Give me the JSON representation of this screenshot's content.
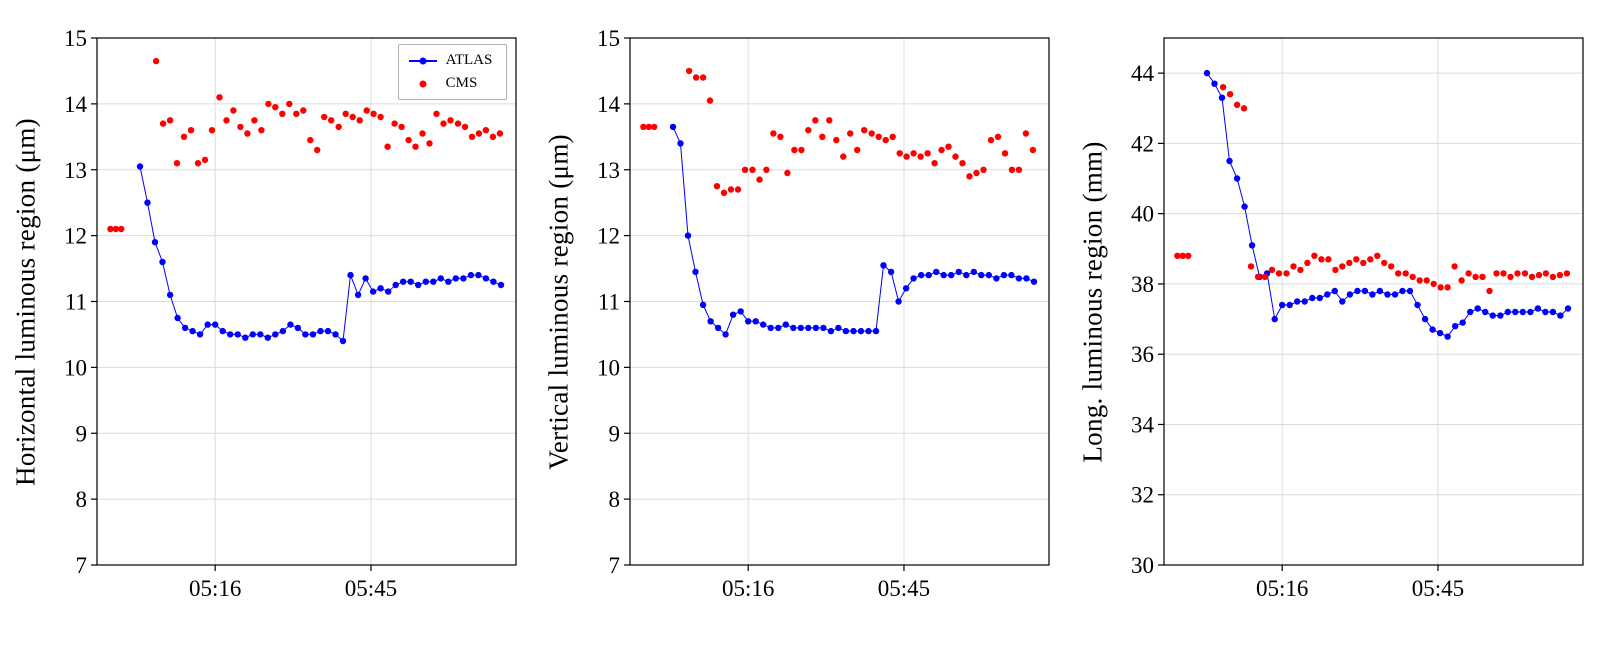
{
  "page": {
    "background": "#ffffff"
  },
  "legend": {
    "entries": [
      "ATLAS",
      "CMS"
    ]
  },
  "chart_data": [
    {
      "type": "scatter",
      "title": "",
      "ylabel": "Horizontal luminous region (μm)",
      "xlabel": "",
      "ylim": [
        7,
        15
      ],
      "yticks": [
        7,
        8,
        9,
        10,
        11,
        12,
        13,
        14,
        15
      ],
      "xlim": [
        -6,
        72
      ],
      "x_unit": "minutes after 05:00",
      "xticks": [
        {
          "v": 16,
          "label": "05:16"
        },
        {
          "v": 45,
          "label": "05:45"
        }
      ],
      "grid": true,
      "legend": true,
      "series": [
        {
          "name": "ATLAS",
          "color": "#0000ff",
          "marker": "circle",
          "line": true,
          "x": [
            2,
            3.4,
            4.8,
            6.2,
            7.6,
            9,
            10.4,
            11.8,
            13.2,
            14.6,
            16,
            17.4,
            18.8,
            20.2,
            21.6,
            23,
            24.4,
            25.8,
            27.2,
            28.6,
            30,
            31.4,
            32.8,
            34.2,
            35.6,
            37,
            38.4,
            39.8,
            41.2,
            42.6,
            44,
            45.4,
            46.8,
            48.2,
            49.6,
            51,
            52.4,
            53.8,
            55.2,
            56.6,
            58,
            59.4,
            60.8,
            62.2,
            63.6,
            65,
            66.4,
            67.8,
            69.2
          ],
          "y": [
            13.05,
            12.5,
            11.9,
            11.6,
            11.1,
            10.75,
            10.6,
            10.55,
            10.5,
            10.65,
            10.65,
            10.55,
            10.5,
            10.5,
            10.45,
            10.5,
            10.5,
            10.45,
            10.5,
            10.55,
            10.65,
            10.6,
            10.5,
            10.5,
            10.55,
            10.55,
            10.5,
            10.4,
            11.4,
            11.1,
            11.35,
            11.15,
            11.2,
            11.15,
            11.25,
            11.3,
            11.3,
            11.25,
            11.3,
            11.3,
            11.35,
            11.3,
            11.35,
            11.35,
            11.4,
            11.4,
            11.35,
            11.3,
            11.25
          ]
        },
        {
          "name": "CMS",
          "color": "#ff0000",
          "marker": "circle",
          "line": false,
          "x": [
            -3.5,
            -2.5,
            -1.5,
            5,
            6.3,
            7.6,
            8.9,
            10.2,
            11.5,
            12.8,
            14.1,
            15.4,
            16.8,
            18.1,
            19.4,
            20.7,
            22,
            23.3,
            24.6,
            25.9,
            27.2,
            28.5,
            29.8,
            31.1,
            32.4,
            33.7,
            35,
            36.3,
            37.6,
            39,
            40.3,
            41.6,
            42.9,
            44.2,
            45.5,
            46.8,
            48.1,
            49.4,
            50.7,
            52,
            53.3,
            54.6,
            55.9,
            57.2,
            58.5,
            59.8,
            61.2,
            62.5,
            63.8,
            65.1,
            66.4,
            67.7,
            69
          ],
          "y": [
            12.1,
            12.1,
            12.1,
            14.65,
            13.7,
            13.75,
            13.1,
            13.5,
            13.6,
            13.1,
            13.15,
            13.6,
            14.1,
            13.75,
            13.9,
            13.65,
            13.55,
            13.75,
            13.6,
            14.0,
            13.95,
            13.85,
            14.0,
            13.85,
            13.9,
            13.45,
            13.3,
            13.8,
            13.75,
            13.65,
            13.85,
            13.8,
            13.75,
            13.9,
            13.85,
            13.8,
            13.35,
            13.7,
            13.65,
            13.45,
            13.35,
            13.55,
            13.4,
            13.85,
            13.7,
            13.75,
            13.7,
            13.65,
            13.5,
            13.55,
            13.6,
            13.5,
            13.55
          ]
        }
      ]
    },
    {
      "type": "scatter",
      "title": "",
      "ylabel": "Vertical luminous region (μm)",
      "xlabel": "",
      "ylim": [
        7,
        15
      ],
      "yticks": [
        7,
        8,
        9,
        10,
        11,
        12,
        13,
        14,
        15
      ],
      "xlim": [
        -6,
        72
      ],
      "x_unit": "minutes after 05:00",
      "xticks": [
        {
          "v": 16,
          "label": "05:16"
        },
        {
          "v": 45,
          "label": "05:45"
        }
      ],
      "grid": true,
      "legend": false,
      "series": [
        {
          "name": "ATLAS",
          "color": "#0000ff",
          "marker": "circle",
          "line": true,
          "x": [
            2,
            3.4,
            4.8,
            6.2,
            7.6,
            9,
            10.4,
            11.8,
            13.2,
            14.6,
            16,
            17.4,
            18.8,
            20.2,
            21.6,
            23,
            24.4,
            25.8,
            27.2,
            28.6,
            30,
            31.4,
            32.8,
            34.2,
            35.6,
            37,
            38.4,
            39.8,
            41.2,
            42.6,
            44,
            45.4,
            46.8,
            48.2,
            49.6,
            51,
            52.4,
            53.8,
            55.2,
            56.6,
            58,
            59.4,
            60.8,
            62.2,
            63.6,
            65,
            66.4,
            67.8,
            69.2
          ],
          "y": [
            13.65,
            13.4,
            12.0,
            11.45,
            10.95,
            10.7,
            10.6,
            10.5,
            10.8,
            10.85,
            10.7,
            10.7,
            10.65,
            10.6,
            10.6,
            10.65,
            10.6,
            10.6,
            10.6,
            10.6,
            10.6,
            10.55,
            10.6,
            10.55,
            10.55,
            10.55,
            10.55,
            10.55,
            11.55,
            11.45,
            11.0,
            11.2,
            11.35,
            11.4,
            11.4,
            11.45,
            11.4,
            11.4,
            11.45,
            11.4,
            11.45,
            11.4,
            11.4,
            11.35,
            11.4,
            11.4,
            11.35,
            11.35,
            11.3
          ]
        },
        {
          "name": "CMS",
          "color": "#ff0000",
          "marker": "circle",
          "line": false,
          "x": [
            -3.5,
            -2.5,
            -1.5,
            5,
            6.3,
            7.6,
            8.9,
            10.2,
            11.5,
            12.8,
            14.1,
            15.4,
            16.8,
            18.1,
            19.4,
            20.7,
            22,
            23.3,
            24.6,
            25.9,
            27.2,
            28.5,
            29.8,
            31.1,
            32.4,
            33.7,
            35,
            36.3,
            37.6,
            39,
            40.3,
            41.6,
            42.9,
            44.2,
            45.5,
            46.8,
            48.1,
            49.4,
            50.7,
            52,
            53.3,
            54.6,
            55.9,
            57.2,
            58.5,
            59.8,
            61.2,
            62.5,
            63.8,
            65.1,
            66.4,
            67.7,
            69
          ],
          "y": [
            13.65,
            13.65,
            13.65,
            14.5,
            14.4,
            14.4,
            14.05,
            12.75,
            12.65,
            12.7,
            12.7,
            13.0,
            13.0,
            12.85,
            13.0,
            13.55,
            13.5,
            12.95,
            13.3,
            13.3,
            13.6,
            13.75,
            13.5,
            13.75,
            13.45,
            13.2,
            13.55,
            13.3,
            13.6,
            13.55,
            13.5,
            13.45,
            13.5,
            13.25,
            13.2,
            13.25,
            13.2,
            13.25,
            13.1,
            13.3,
            13.35,
            13.2,
            13.1,
            12.9,
            12.95,
            13.0,
            13.45,
            13.5,
            13.25,
            13.0,
            13.0,
            13.55,
            13.3
          ]
        }
      ]
    },
    {
      "type": "scatter",
      "title": "",
      "ylabel": "Long. luminous region (mm)",
      "xlabel": "",
      "ylim": [
        30,
        45
      ],
      "yticks": [
        30,
        32,
        34,
        36,
        38,
        40,
        42,
        44
      ],
      "xlim": [
        -6,
        72
      ],
      "x_unit": "minutes after 05:00",
      "xticks": [
        {
          "v": 16,
          "label": "05:16"
        },
        {
          "v": 45,
          "label": "05:45"
        }
      ],
      "grid": true,
      "legend": false,
      "series": [
        {
          "name": "ATLAS",
          "color": "#0000ff",
          "marker": "circle",
          "line": true,
          "x": [
            2,
            3.4,
            4.8,
            6.2,
            7.6,
            9,
            10.4,
            11.8,
            13.2,
            14.6,
            16,
            17.4,
            18.8,
            20.2,
            21.6,
            23,
            24.4,
            25.8,
            27.2,
            28.6,
            30,
            31.4,
            32.8,
            34.2,
            35.6,
            37,
            38.4,
            39.8,
            41.2,
            42.6,
            44,
            45.4,
            46.8,
            48.2,
            49.6,
            51,
            52.4,
            53.8,
            55.2,
            56.6,
            58,
            59.4,
            60.8,
            62.2,
            63.6,
            65,
            66.4,
            67.8,
            69.2
          ],
          "y": [
            44.0,
            43.7,
            43.3,
            41.5,
            41.0,
            40.2,
            39.1,
            38.2,
            38.3,
            37.0,
            37.4,
            37.4,
            37.5,
            37.5,
            37.6,
            37.6,
            37.7,
            37.8,
            37.5,
            37.7,
            37.8,
            37.8,
            37.7,
            37.8,
            37.7,
            37.7,
            37.8,
            37.8,
            37.4,
            37.0,
            36.7,
            36.6,
            36.5,
            36.8,
            36.9,
            37.2,
            37.3,
            37.2,
            37.1,
            37.1,
            37.2,
            37.2,
            37.2,
            37.2,
            37.3,
            37.2,
            37.2,
            37.1,
            37.3
          ]
        },
        {
          "name": "CMS",
          "color": "#ff0000",
          "marker": "circle",
          "line": false,
          "x": [
            -3.5,
            -2.5,
            -1.5,
            5,
            6.3,
            7.6,
            8.9,
            10.2,
            11.5,
            12.8,
            14.1,
            15.4,
            16.8,
            18.1,
            19.4,
            20.7,
            22,
            23.3,
            24.6,
            25.9,
            27.2,
            28.5,
            29.8,
            31.1,
            32.4,
            33.7,
            35,
            36.3,
            37.6,
            39,
            40.3,
            41.6,
            42.9,
            44.2,
            45.5,
            46.8,
            48.1,
            49.4,
            50.7,
            52,
            53.3,
            54.6,
            55.9,
            57.2,
            58.5,
            59.8,
            61.2,
            62.5,
            63.8,
            65.1,
            66.4,
            67.7,
            69
          ],
          "y": [
            38.8,
            38.8,
            38.8,
            43.6,
            43.4,
            43.1,
            43.0,
            38.5,
            38.2,
            38.2,
            38.4,
            38.3,
            38.3,
            38.5,
            38.4,
            38.6,
            38.8,
            38.7,
            38.7,
            38.4,
            38.5,
            38.6,
            38.7,
            38.6,
            38.7,
            38.8,
            38.6,
            38.5,
            38.3,
            38.3,
            38.2,
            38.1,
            38.1,
            38.0,
            37.9,
            37.9,
            38.5,
            38.1,
            38.3,
            38.2,
            38.2,
            37.8,
            38.3,
            38.3,
            38.2,
            38.3,
            38.3,
            38.2,
            38.25,
            38.3,
            38.2,
            38.25,
            38.3
          ]
        }
      ]
    }
  ]
}
